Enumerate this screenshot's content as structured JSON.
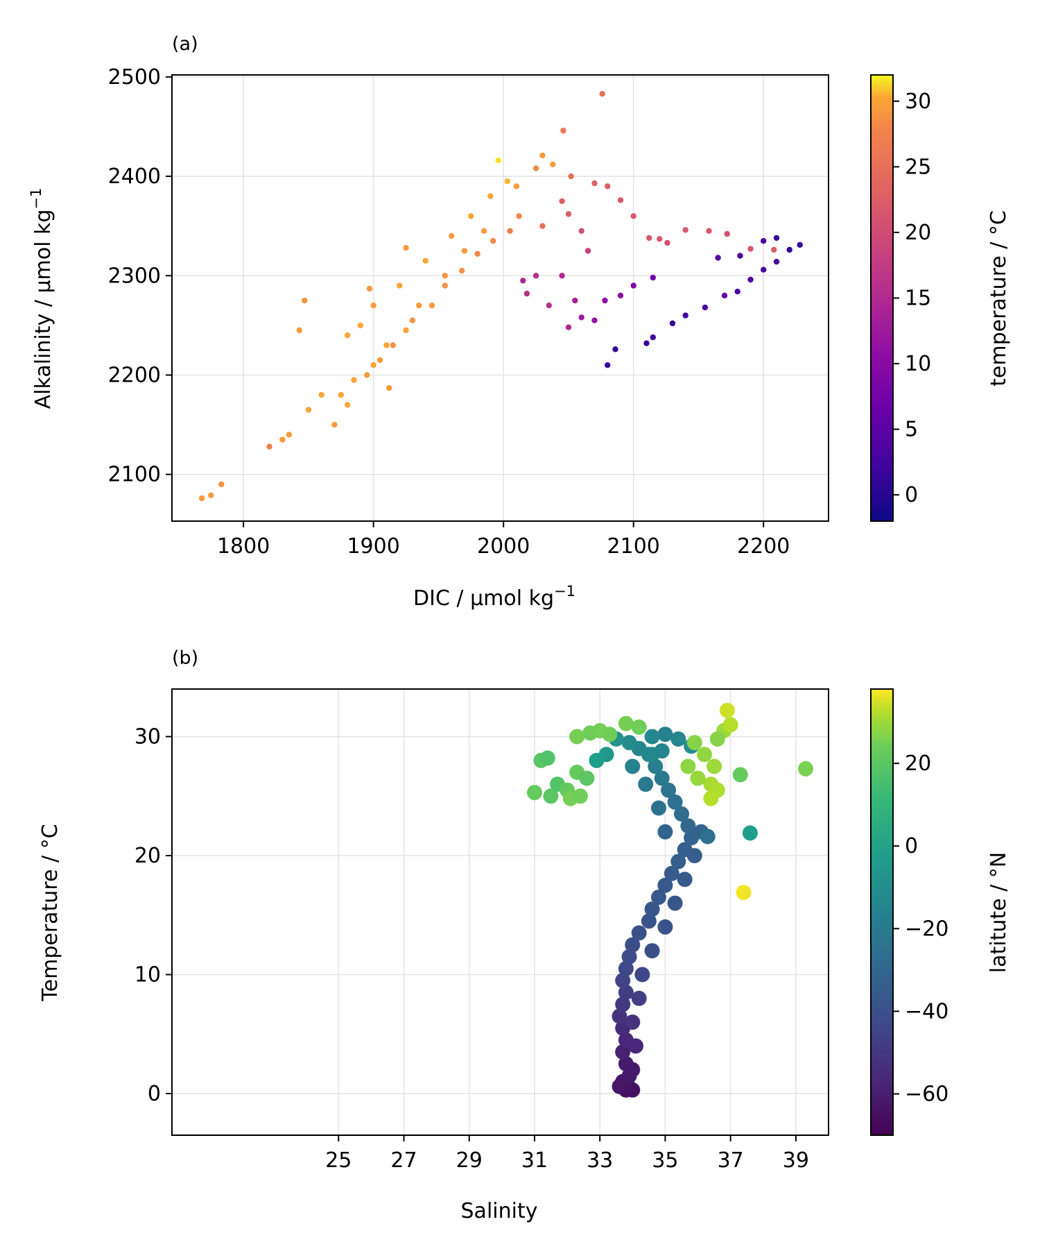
{
  "chart_data": [
    {
      "type": "scatter",
      "panel_label": "(a)",
      "xlabel": "DIC / µmol kg",
      "xlabel_sup": "−1",
      "ylabel": "Alkalinity / µmol kg",
      "ylabel_sup": "−1",
      "xlim": [
        1745,
        2250
      ],
      "ylim": [
        2053,
        2502
      ],
      "xticks": [
        1800,
        1900,
        2000,
        2100,
        2200
      ],
      "yticks": [
        2100,
        2200,
        2300,
        2400,
        2500
      ],
      "grid": true,
      "colorbar": {
        "label": "temperature / °C",
        "colormap": "plasma",
        "range": [
          -2,
          32
        ],
        "ticks": [
          0,
          5,
          10,
          15,
          20,
          25,
          30
        ],
        "tick_labels": [
          "0",
          "5",
          "10",
          "15",
          "20",
          "25",
          "30"
        ]
      },
      "series": [
        {
          "marker_size": "small",
          "points": [
            [
              1768,
              2076,
              27
            ],
            [
              1775,
              2079,
              27
            ],
            [
              1783,
              2090,
              26
            ],
            [
              1820,
              2128,
              24
            ],
            [
              1843,
              2245,
              27
            ],
            [
              1847,
              2275,
              26
            ],
            [
              1912,
              2187,
              27
            ],
            [
              1897,
              2287,
              27
            ],
            [
              1925,
              2328,
              27
            ],
            [
              1996,
              2416,
              31
            ],
            [
              2046,
              2446,
              23
            ],
            [
              2076,
              2483,
              22
            ],
            [
              2030,
              2421,
              27
            ],
            [
              2038,
              2412,
              27
            ],
            [
              2025,
              2408,
              25
            ],
            [
              2052,
              2400,
              22
            ],
            [
              2070,
              2393,
              20
            ],
            [
              2080,
              2390,
              20
            ],
            [
              2090,
              2376,
              19
            ],
            [
              2100,
              2360,
              19
            ],
            [
              2112,
              2338,
              19
            ],
            [
              2120,
              2337,
              19
            ],
            [
              2126,
              2333,
              18
            ],
            [
              2140,
              2346,
              19
            ],
            [
              2158,
              2345,
              19
            ],
            [
              2172,
              2342,
              18
            ],
            [
              2190,
              2327,
              19
            ],
            [
              2208,
              2326,
              20
            ],
            [
              2080,
              2210,
              1
            ],
            [
              2086,
              2226,
              1
            ],
            [
              2110,
              2232,
              1
            ],
            [
              2115,
              2238,
              2
            ],
            [
              2130,
              2252,
              1
            ],
            [
              2140,
              2260,
              2
            ],
            [
              2155,
              2268,
              3
            ],
            [
              2170,
              2280,
              5
            ],
            [
              2180,
              2284,
              3
            ],
            [
              2190,
              2296,
              3
            ],
            [
              2200,
              2306,
              2
            ],
            [
              2210,
              2314,
              2
            ],
            [
              2220,
              2326,
              1
            ],
            [
              2228,
              2331,
              1
            ],
            [
              2200,
              2335,
              2
            ],
            [
              2210,
              2338,
              1
            ],
            [
              2165,
              2318,
              4
            ],
            [
              2182,
              2320,
              3
            ],
            [
              2115,
              2298,
              6
            ],
            [
              2100,
              2290,
              8
            ],
            [
              2090,
              2280,
              9
            ],
            [
              2060,
              2258,
              11
            ],
            [
              2055,
              2275,
              12
            ],
            [
              2045,
              2300,
              13
            ],
            [
              2025,
              2300,
              14
            ],
            [
              2015,
              2295,
              13
            ],
            [
              2018,
              2282,
              14
            ],
            [
              2035,
              2270,
              14
            ],
            [
              2050,
              2248,
              13
            ],
            [
              2070,
              2255,
              10
            ],
            [
              2078,
              2275,
              9
            ],
            [
              2065,
              2325,
              16
            ],
            [
              2060,
              2345,
              18
            ],
            [
              2050,
              2362,
              20
            ],
            [
              2045,
              2375,
              20
            ],
            [
              2030,
              2350,
              22
            ],
            [
              1870,
              2150,
              27
            ],
            [
              1880,
              2170,
              28
            ],
            [
              1895,
              2200,
              27
            ],
            [
              1905,
              2215,
              27
            ],
            [
              1915,
              2230,
              26
            ],
            [
              1930,
              2255,
              26
            ],
            [
              1945,
              2270,
              27
            ],
            [
              1955,
              2290,
              26
            ],
            [
              1968,
              2305,
              26
            ],
            [
              1980,
              2322,
              25
            ],
            [
              1992,
              2335,
              25
            ],
            [
              2005,
              2345,
              24
            ],
            [
              2012,
              2360,
              25
            ],
            [
              1860,
              2180,
              28
            ],
            [
              1850,
              2165,
              28
            ],
            [
              1835,
              2140,
              27
            ],
            [
              1830,
              2135,
              27
            ],
            [
              1880,
              2240,
              28
            ],
            [
              1890,
              2250,
              28
            ],
            [
              1900,
              2270,
              27
            ],
            [
              1920,
              2290,
              28
            ],
            [
              1940,
              2315,
              28
            ],
            [
              1960,
              2340,
              27
            ],
            [
              1975,
              2360,
              28
            ],
            [
              1990,
              2380,
              28
            ],
            [
              2003,
              2395,
              29
            ],
            [
              2010,
              2390,
              27
            ],
            [
              1985,
              2345,
              27
            ],
            [
              1970,
              2325,
              27
            ],
            [
              1955,
              2300,
              26
            ],
            [
              1935,
              2270,
              27
            ],
            [
              1925,
              2245,
              28
            ],
            [
              1910,
              2230,
              28
            ],
            [
              1900,
              2210,
              28
            ],
            [
              1885,
              2195,
              28
            ],
            [
              1875,
              2180,
              28
            ]
          ]
        }
      ]
    },
    {
      "type": "scatter",
      "panel_label": "(b)",
      "xlabel": "Salinity",
      "ylabel": "Temperature / °C",
      "xlim": [
        19.9,
        40.0
      ],
      "ylim": [
        -3.5,
        34
      ],
      "xticks": [
        25,
        27,
        29,
        31,
        33,
        35,
        37,
        39
      ],
      "yticks": [
        0,
        10,
        20,
        30
      ],
      "grid": true,
      "colorbar": {
        "label": "latitute / °N",
        "colormap": "viridis",
        "range": [
          -70,
          38
        ],
        "ticks": [
          -60,
          -40,
          -20,
          0,
          20
        ],
        "tick_labels": [
          "−60",
          "−40",
          "−20",
          "0",
          "20"
        ]
      },
      "series": [
        {
          "marker_size": "large",
          "points": [
            [
              33.8,
              0.3,
              -66
            ],
            [
              33.9,
              0.5,
              -65
            ],
            [
              34.0,
              0.3,
              -65
            ],
            [
              33.6,
              0.6,
              -64
            ],
            [
              33.7,
              1.0,
              -64
            ],
            [
              33.9,
              1.5,
              -63
            ],
            [
              33.8,
              2.5,
              -62
            ],
            [
              33.7,
              3.5,
              -60
            ],
            [
              33.8,
              4.5,
              -58
            ],
            [
              33.7,
              5.5,
              -56
            ],
            [
              33.6,
              6.5,
              -54
            ],
            [
              33.7,
              7.5,
              -52
            ],
            [
              33.8,
              8.5,
              -50
            ],
            [
              33.7,
              9.5,
              -48
            ],
            [
              33.8,
              10.5,
              -46
            ],
            [
              33.9,
              11.5,
              -45
            ],
            [
              34.0,
              12.5,
              -44
            ],
            [
              34.2,
              13.5,
              -43
            ],
            [
              34.5,
              14.5,
              -42
            ],
            [
              34.6,
              15.5,
              -41
            ],
            [
              34.8,
              16.5,
              -40
            ],
            [
              35.0,
              17.5,
              -40
            ],
            [
              35.2,
              18.5,
              -39
            ],
            [
              35.4,
              19.5,
              -38
            ],
            [
              35.6,
              20.5,
              -37
            ],
            [
              35.8,
              21.5,
              -36
            ],
            [
              35.7,
              22.5,
              -34
            ],
            [
              35.5,
              23.5,
              -32
            ],
            [
              35.3,
              24.5,
              -30
            ],
            [
              35.1,
              25.5,
              -28
            ],
            [
              34.9,
              26.5,
              -26
            ],
            [
              34.7,
              27.5,
              -24
            ],
            [
              34.5,
              28.5,
              -22
            ],
            [
              34.2,
              29.0,
              -20
            ],
            [
              33.9,
              29.5,
              -18
            ],
            [
              33.5,
              29.8,
              -15
            ],
            [
              33.2,
              28.5,
              -12
            ],
            [
              32.9,
              28.0,
              -10
            ],
            [
              34.3,
              10.0,
              -46
            ],
            [
              34.6,
              12.0,
              -44
            ],
            [
              35.0,
              14.0,
              -42
            ],
            [
              35.3,
              16.0,
              -41
            ],
            [
              35.6,
              18.0,
              -40
            ],
            [
              35.9,
              20.0,
              -38
            ],
            [
              36.1,
              22.0,
              -36
            ],
            [
              36.3,
              21.6,
              -30
            ],
            [
              35.0,
              22.0,
              -35
            ],
            [
              34.8,
              24.0,
              -30
            ],
            [
              34.4,
              26.0,
              -26
            ],
            [
              34.0,
              27.5,
              -22
            ],
            [
              34.2,
              8.0,
              -50
            ],
            [
              34.0,
              6.0,
              -54
            ],
            [
              34.1,
              4.0,
              -58
            ],
            [
              34.0,
              2.0,
              -62
            ],
            [
              34.6,
              30.0,
              -20
            ],
            [
              35.0,
              30.2,
              -22
            ],
            [
              35.4,
              29.8,
              -20
            ],
            [
              35.8,
              29.2,
              -18
            ],
            [
              31.2,
              28.0,
              10
            ],
            [
              31.4,
              28.2,
              8
            ],
            [
              31.0,
              25.3,
              12
            ],
            [
              31.5,
              25.0,
              10
            ],
            [
              31.7,
              26.0,
              8
            ],
            [
              32.0,
              25.5,
              12
            ],
            [
              32.1,
              24.8,
              15
            ],
            [
              32.4,
              25.0,
              14
            ],
            [
              32.3,
              27.0,
              12
            ],
            [
              32.6,
              26.5,
              10
            ],
            [
              32.3,
              30.0,
              15
            ],
            [
              32.7,
              30.3,
              14
            ],
            [
              33.0,
              30.5,
              15
            ],
            [
              33.3,
              30.2,
              14
            ],
            [
              33.8,
              31.1,
              15
            ],
            [
              34.2,
              30.8,
              14
            ],
            [
              35.9,
              29.5,
              18
            ],
            [
              36.2,
              28.5,
              20
            ],
            [
              36.5,
              27.5,
              22
            ],
            [
              36.4,
              26.0,
              24
            ],
            [
              36.6,
              25.5,
              25
            ],
            [
              36.4,
              24.8,
              26
            ],
            [
              36.8,
              30.5,
              22
            ],
            [
              36.9,
              32.2,
              30
            ],
            [
              37.0,
              31.0,
              26
            ],
            [
              36.6,
              29.8,
              18
            ],
            [
              36.0,
              26.5,
              21
            ],
            [
              35.7,
              27.5,
              19
            ],
            [
              37.3,
              26.8,
              12
            ],
            [
              39.3,
              27.3,
              16
            ],
            [
              37.6,
              21.9,
              -10
            ],
            [
              37.4,
              16.9,
              36
            ],
            [
              34.6,
              28.5,
              -19
            ],
            [
              34.9,
              28.8,
              -21
            ]
          ]
        }
      ]
    }
  ]
}
